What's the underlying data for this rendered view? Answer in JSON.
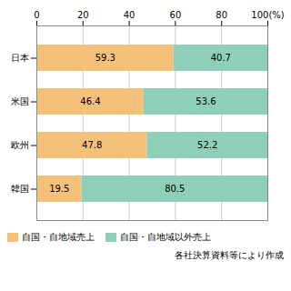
{
  "chart_data": {
    "type": "bar",
    "orientation": "horizontal",
    "stacked": true,
    "categories": [
      "日本",
      "米国",
      "欧州",
      "韓国"
    ],
    "series": [
      {
        "name": "自国・自地域売上",
        "color": "#F5C07A",
        "values": [
          59.3,
          46.4,
          47.8,
          19.5
        ]
      },
      {
        "name": "自国・自地域以外売上",
        "color": "#8ECFB8",
        "values": [
          40.7,
          53.6,
          52.2,
          80.5
        ]
      }
    ],
    "xlim": [
      0,
      100
    ],
    "xticks": [
      0,
      20,
      40,
      60,
      80,
      {
        "value": 100,
        "label": "100(%)"
      }
    ],
    "grid": true,
    "data_labels": true,
    "legend": "bottom",
    "caption": "各社決算資料等により作成"
  }
}
